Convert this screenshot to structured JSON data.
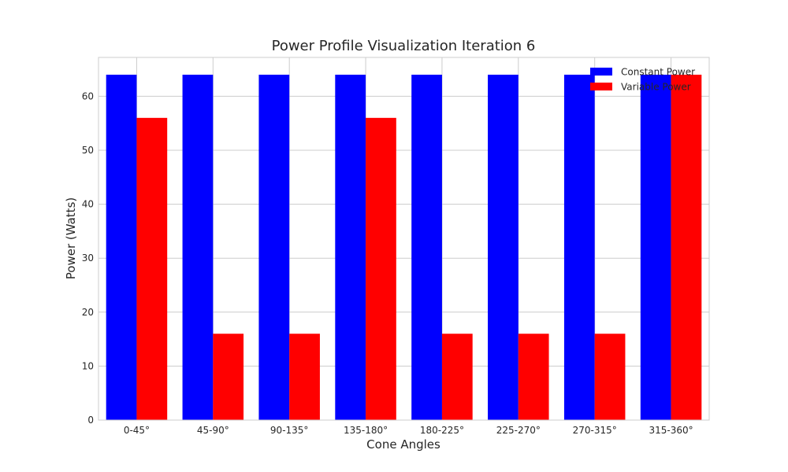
{
  "chart_data": {
    "type": "bar",
    "title": "Power Profile Visualization Iteration 6",
    "xlabel": "Cone Angles",
    "ylabel": "Power (Watts)",
    "categories": [
      "0-45°",
      "45-90°",
      "90-135°",
      "135-180°",
      "180-225°",
      "225-270°",
      "270-315°",
      "315-360°"
    ],
    "series": [
      {
        "name": "Constant Power",
        "color": "#0000ff",
        "values": [
          64,
          64,
          64,
          64,
          64,
          64,
          64,
          64
        ]
      },
      {
        "name": "Variable Power",
        "color": "#ff0000",
        "values": [
          56,
          16,
          16,
          56,
          16,
          16,
          16,
          64
        ]
      }
    ],
    "ylim": [
      0,
      67.2
    ],
    "yticks": [
      0,
      10,
      20,
      30,
      40,
      50,
      60
    ],
    "grid": true,
    "legend_position": "top-right"
  }
}
